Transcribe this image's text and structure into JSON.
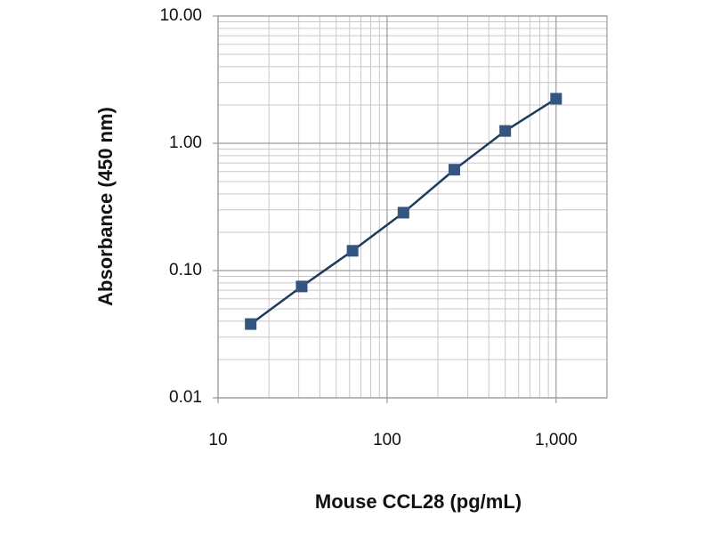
{
  "chart_data": {
    "type": "line",
    "x_label": "Mouse  CCL28 (pg/mL)",
    "y_label": "Absorbance (450 nm)",
    "x": [
      15.6,
      31.25,
      62.5,
      125,
      250,
      500,
      1000
    ],
    "series": [
      {
        "name": "CCL28",
        "color": "#1f3a5f",
        "marker_color": "#34557f",
        "values": [
          0.038,
          0.075,
          0.143,
          0.285,
          0.62,
          1.25,
          2.24
        ]
      }
    ],
    "x_log": true,
    "y_log": true,
    "xlim": [
      10,
      2000
    ],
    "ylim": [
      0.01,
      10
    ],
    "xticks": [
      10,
      100,
      {
        "value": 1000,
        "label": "1,000"
      }
    ],
    "yticks": [
      {
        "value": 0.01,
        "label": "0.01"
      },
      {
        "value": 0.1,
        "label": "0.10"
      },
      {
        "value": 1,
        "label": "1.00"
      },
      {
        "value": 10,
        "label": "10.00"
      }
    ],
    "grid": true,
    "minor_grid": true
  }
}
